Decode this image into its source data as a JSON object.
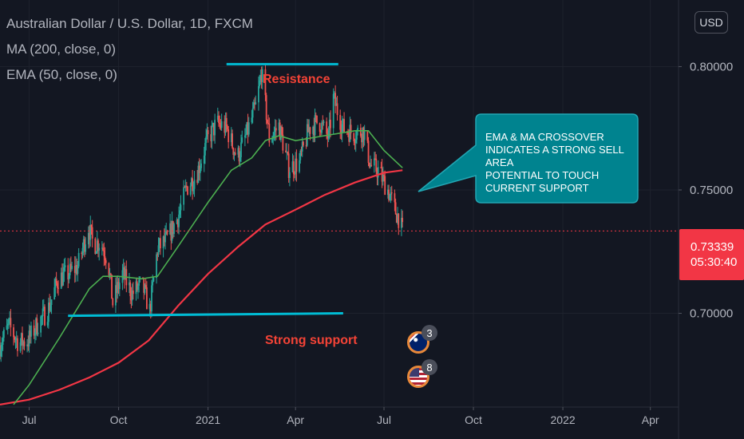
{
  "header": {
    "title": "Australian Dollar / U.S. Dollar, 1D, FXCM",
    "ma_label": "MA (200, close, 0)",
    "ema_label": "EMA (50, close, 0)"
  },
  "toolbar": {
    "currency_button": "USD"
  },
  "last_price": {
    "value": "0.73339",
    "countdown": "05:30:40",
    "color": "#f23645"
  },
  "annotations": {
    "resistance": "Resistance",
    "support": "Strong support",
    "callout": "EMA & MA CROSSOVER\nINDICATES A STRONG SELL AREA\nPOTENTIAL TO TOUCH\nCURRENT SUPPORT"
  },
  "events": [
    {
      "flag": "australia-flag-icon",
      "count": "3"
    },
    {
      "flag": "us-flag-icon",
      "count": "8"
    }
  ],
  "colors": {
    "background": "#131722",
    "up": "#26a69a",
    "down": "#ef5350",
    "ma_200": "#f23645",
    "ema_50": "#4caf50",
    "annotation_lines": "#00bcd4",
    "annotation_text": "#f44336",
    "callout_fill": "#00838f"
  },
  "chart_data": {
    "type": "candlestick",
    "symbol": "AUDUSD",
    "timeframe": "1D",
    "x_ticks": [
      "Jul",
      "Oct",
      "2021",
      "Apr",
      "Jul",
      "Oct",
      "2022",
      "Apr"
    ],
    "y_ticks": [
      "0.70000",
      "0.75000",
      "0.80000"
    ],
    "ylim": [
      0.662,
      0.827
    ],
    "x_start": "2020-06-01",
    "x_end": "2022-04-30",
    "last_close": 0.73339,
    "close_path": [
      [
        "2020-06-01",
        0.687
      ],
      [
        "2020-06-10",
        0.695
      ],
      [
        "2020-06-20",
        0.688
      ],
      [
        "2020-06-30",
        0.689
      ],
      [
        "2020-07-10",
        0.696
      ],
      [
        "2020-07-20",
        0.701
      ],
      [
        "2020-07-31",
        0.714
      ],
      [
        "2020-08-10",
        0.716
      ],
      [
        "2020-08-20",
        0.719
      ],
      [
        "2020-08-31",
        0.735
      ],
      [
        "2020-09-05",
        0.728
      ],
      [
        "2020-09-12",
        0.729
      ],
      [
        "2020-09-20",
        0.722
      ],
      [
        "2020-09-25",
        0.704
      ],
      [
        "2020-10-05",
        0.716
      ],
      [
        "2020-10-15",
        0.708
      ],
      [
        "2020-10-25",
        0.712
      ],
      [
        "2020-11-02",
        0.701
      ],
      [
        "2020-11-10",
        0.726
      ],
      [
        "2020-11-20",
        0.73
      ],
      [
        "2020-12-01",
        0.739
      ],
      [
        "2020-12-10",
        0.751
      ],
      [
        "2020-12-20",
        0.756
      ],
      [
        "2020-12-31",
        0.77
      ],
      [
        "2021-01-10",
        0.777
      ],
      [
        "2021-01-20",
        0.775
      ],
      [
        "2021-01-31",
        0.763
      ],
      [
        "2021-02-10",
        0.773
      ],
      [
        "2021-02-20",
        0.785
      ],
      [
        "2021-02-25",
        0.798
      ],
      [
        "2021-03-05",
        0.771
      ],
      [
        "2021-03-15",
        0.776
      ],
      [
        "2021-03-25",
        0.759
      ],
      [
        "2021-04-05",
        0.761
      ],
      [
        "2021-04-15",
        0.775
      ],
      [
        "2021-04-25",
        0.778
      ],
      [
        "2021-05-05",
        0.771
      ],
      [
        "2021-05-10",
        0.787
      ],
      [
        "2021-05-20",
        0.775
      ],
      [
        "2021-05-31",
        0.773
      ],
      [
        "2021-06-10",
        0.774
      ],
      [
        "2021-06-17",
        0.76
      ],
      [
        "2021-06-25",
        0.758
      ],
      [
        "2021-07-05",
        0.75
      ],
      [
        "2021-07-12",
        0.742
      ],
      [
        "2021-07-16",
        0.739
      ],
      [
        "2021-07-20",
        0.733
      ]
    ],
    "series": [
      {
        "name": "MA (200, close, 0)",
        "points": [
          [
            "2020-06-01",
            0.663
          ],
          [
            "2020-07-01",
            0.665
          ],
          [
            "2020-08-01",
            0.669
          ],
          [
            "2020-09-01",
            0.674
          ],
          [
            "2020-10-01",
            0.68
          ],
          [
            "2020-11-01",
            0.689
          ],
          [
            "2020-12-01",
            0.703
          ],
          [
            "2021-01-01",
            0.716
          ],
          [
            "2021-02-01",
            0.727
          ],
          [
            "2021-03-01",
            0.736
          ],
          [
            "2021-04-01",
            0.742
          ],
          [
            "2021-05-01",
            0.748
          ],
          [
            "2021-06-01",
            0.753
          ],
          [
            "2021-07-01",
            0.757
          ],
          [
            "2021-07-20",
            0.758
          ]
        ]
      },
      {
        "name": "EMA (50, close, 0)",
        "points": [
          [
            "2020-06-15",
            0.663
          ],
          [
            "2020-07-01",
            0.671
          ],
          [
            "2020-08-01",
            0.69
          ],
          [
            "2020-09-01",
            0.71
          ],
          [
            "2020-09-15",
            0.715
          ],
          [
            "2020-10-01",
            0.715
          ],
          [
            "2020-10-25",
            0.714
          ],
          [
            "2020-11-10",
            0.715
          ],
          [
            "2020-12-01",
            0.727
          ],
          [
            "2021-01-01",
            0.745
          ],
          [
            "2021-01-25",
            0.758
          ],
          [
            "2021-02-15",
            0.763
          ],
          [
            "2021-03-01",
            0.77
          ],
          [
            "2021-03-15",
            0.772
          ],
          [
            "2021-04-01",
            0.77
          ],
          [
            "2021-05-01",
            0.772
          ],
          [
            "2021-06-01",
            0.774
          ],
          [
            "2021-06-15",
            0.774
          ],
          [
            "2021-07-01",
            0.766
          ],
          [
            "2021-07-20",
            0.759
          ]
        ]
      }
    ],
    "drawings": {
      "resistance_line": {
        "from": [
          "2021-01-20",
          0.801
        ],
        "to": [
          "2021-05-15",
          0.801
        ]
      },
      "support_line": {
        "from": [
          "2020-08-10",
          0.699
        ],
        "to": [
          "2021-05-20",
          0.7
        ]
      }
    }
  }
}
